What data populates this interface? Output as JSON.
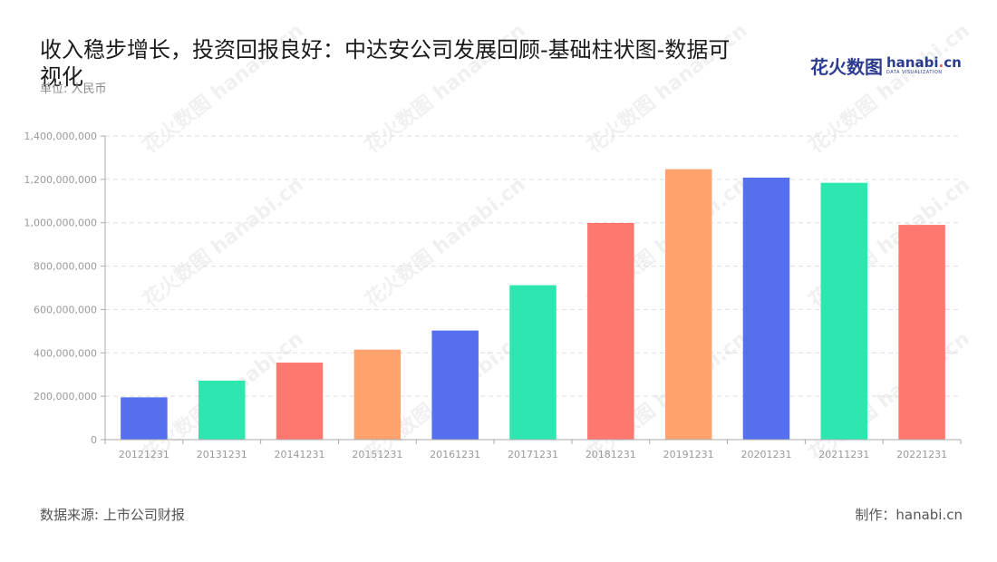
{
  "header": {
    "title": "收入稳步增长，投资回报良好：中达安公司发展回顾-基础柱状图-数据可视化",
    "unit": "单位: 人民币"
  },
  "logo": {
    "cn": "花火数图",
    "en_main": "hanabi",
    "en_dot": ".",
    "en_tld": "cn",
    "en_sub": "DATA VISUALIZATION"
  },
  "footer": {
    "source": "数据来源: 上市公司财报",
    "maker": "制作：hanabi.cn"
  },
  "colors": {
    "blue": "#5470ee",
    "green": "#2de6b0",
    "red": "#ff7870",
    "orange": "#ffa26e",
    "grid": "#dddddd",
    "axis": "#aaaaaa",
    "tick_text": "#999999"
  },
  "chart_data": {
    "type": "bar",
    "categories": [
      "20121231",
      "20131231",
      "20141231",
      "20151231",
      "20161231",
      "20171231",
      "20181231",
      "20191231",
      "20201231",
      "20211231",
      "20221231"
    ],
    "values": [
      195000000,
      272000000,
      355000000,
      415000000,
      503000000,
      712000000,
      999000000,
      1247000000,
      1208000000,
      1184000000,
      990000000
    ],
    "bar_colors": [
      "#5470ee",
      "#2de6b0",
      "#ff7870",
      "#ffa26e",
      "#5470ee",
      "#2de6b0",
      "#ff7870",
      "#ffa26e",
      "#5470ee",
      "#2de6b0",
      "#ff7870"
    ],
    "ylim": [
      0,
      1400000000
    ],
    "yticks": [
      0,
      200000000,
      400000000,
      600000000,
      800000000,
      1000000000,
      1200000000,
      1400000000
    ],
    "ytick_labels": [
      "0",
      "200,000,000",
      "400,000,000",
      "600,000,000",
      "800,000,000",
      "1,000,000,000",
      "1,200,000,000",
      "1,400,000,000"
    ],
    "grid": true,
    "legend": "none"
  }
}
